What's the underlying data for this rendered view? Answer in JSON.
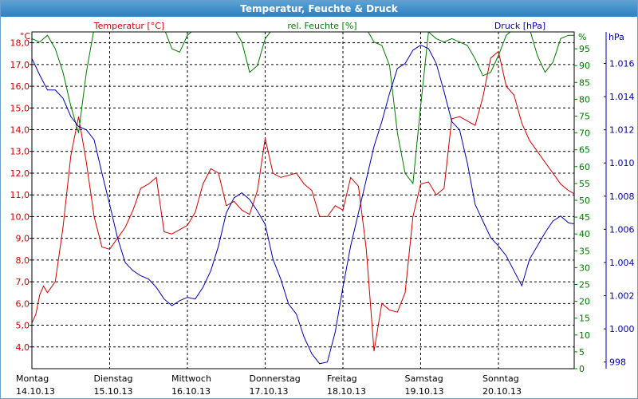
{
  "window": {
    "title": "Temperatur, Feuchte & Druck"
  },
  "colors": {
    "temperature": "#cc0000",
    "humidity": "#007700",
    "pressure": "#0000aa",
    "grid": "#000000"
  },
  "chart_data": {
    "type": "line",
    "title": "Temperatur, Feuchte & Druck",
    "grid": true,
    "legend": "top",
    "x_labels": [
      {
        "day": "Montag",
        "date": "14.10.13"
      },
      {
        "day": "Dienstag",
        "date": "15.10.13"
      },
      {
        "day": "Mittwoch",
        "date": "16.10.13"
      },
      {
        "day": "Donnerstag",
        "date": "17.10.13"
      },
      {
        "day": "Freitag",
        "date": "18.10.13"
      },
      {
        "day": "Samstag",
        "date": "19.10.13"
      },
      {
        "day": "Sonntag",
        "date": "20.10.13"
      }
    ],
    "x_range_days": [
      0,
      7.1
    ],
    "axes": {
      "temperature": {
        "unit": "°C",
        "min": 3.0,
        "max": 18.5,
        "ticks": [
          "4,0",
          "5,0",
          "6,0",
          "7,0",
          "8,0",
          "9,0",
          "10,0",
          "11,0",
          "12,0",
          "13,0",
          "14,0",
          "15,0",
          "16,0",
          "17,0",
          "18,0"
        ]
      },
      "humidity": {
        "unit": "%",
        "min": 0,
        "max": 100,
        "ticks": [
          "0",
          "5",
          "10",
          "15",
          "20",
          "25",
          "30",
          "35",
          "40",
          "45",
          "50",
          "55",
          "60",
          "65",
          "70",
          "75",
          "80",
          "85",
          "90",
          "95"
        ]
      },
      "pressure": {
        "unit": "hPa",
        "min": 997.6,
        "max": 1017.9,
        "ticks": [
          "998",
          "1.000",
          "1.002",
          "1.004",
          "1.006",
          "1.008",
          "1.010",
          "1.012",
          "1.014",
          "1.016"
        ]
      }
    },
    "series": [
      {
        "name": "Temperatur [°C]",
        "axis": "temperature",
        "x": [
          0,
          0.05,
          0.1,
          0.15,
          0.2,
          0.3,
          0.4,
          0.5,
          0.6,
          0.7,
          0.8,
          0.9,
          1.0,
          1.1,
          1.2,
          1.3,
          1.4,
          1.5,
          1.6,
          1.7,
          1.8,
          1.9,
          2.0,
          2.1,
          2.2,
          2.3,
          2.4,
          2.5,
          2.6,
          2.7,
          2.8,
          2.9,
          3.0,
          3.1,
          3.2,
          3.3,
          3.4,
          3.5,
          3.6,
          3.7,
          3.8,
          3.9,
          4.0,
          4.1,
          4.2,
          4.3,
          4.4,
          4.5,
          4.6,
          4.7,
          4.8,
          4.9,
          5.0,
          5.1,
          5.2,
          5.3,
          5.4,
          5.5,
          5.6,
          5.7,
          5.8,
          5.9,
          6.0,
          6.1,
          6.2,
          6.3,
          6.4,
          6.5,
          6.6,
          6.7,
          6.8,
          6.9,
          7.0,
          7.1
        ],
        "values": [
          5.1,
          5.5,
          6.4,
          6.8,
          6.5,
          7.0,
          9.5,
          12.8,
          14.6,
          12.5,
          10.0,
          8.6,
          8.5,
          9.0,
          9.5,
          10.3,
          11.3,
          11.5,
          11.8,
          9.3,
          9.2,
          9.4,
          9.6,
          10.2,
          11.5,
          12.2,
          12.0,
          10.5,
          10.7,
          10.3,
          10.1,
          11.2,
          13.6,
          12.0,
          11.8,
          11.9,
          12.0,
          11.5,
          11.2,
          10.0,
          10.0,
          10.5,
          10.3,
          11.8,
          11.4,
          8.5,
          3.8,
          6.0,
          5.7,
          5.6,
          6.5,
          10.0,
          11.5,
          11.6,
          11.0,
          11.3,
          14.5,
          14.6,
          14.4,
          14.2,
          15.5,
          17.3,
          17.6,
          16.0,
          15.6,
          14.3,
          13.5,
          13.0,
          12.5,
          12.0,
          11.5,
          11.2,
          11.0,
          10.8
        ]
      },
      {
        "name": "rel. Feuchte [%]",
        "axis": "humidity",
        "x": [
          0,
          0.1,
          0.2,
          0.3,
          0.4,
          0.5,
          0.6,
          0.7,
          0.8,
          0.9,
          1.0,
          1.1,
          1.2,
          1.3,
          1.4,
          1.5,
          1.6,
          1.7,
          1.8,
          1.9,
          2.0,
          2.1,
          2.2,
          2.3,
          2.4,
          2.5,
          2.6,
          2.7,
          2.8,
          2.9,
          3.0,
          3.1,
          3.2,
          3.3,
          3.4,
          3.5,
          3.6,
          3.7,
          3.8,
          3.9,
          4.0,
          4.1,
          4.2,
          4.3,
          4.4,
          4.5,
          4.6,
          4.7,
          4.8,
          4.9,
          5.0,
          5.1,
          5.2,
          5.3,
          5.4,
          5.5,
          5.6,
          5.7,
          5.8,
          5.9,
          6.0,
          6.1,
          6.2,
          6.3,
          6.4,
          6.5,
          6.6,
          6.7,
          6.8,
          6.9,
          7.0,
          7.1
        ],
        "values": [
          98,
          97,
          99,
          95,
          88,
          78,
          70,
          88,
          101,
          101,
          101,
          101,
          101,
          101,
          101,
          101,
          101,
          101,
          95,
          94,
          99,
          101,
          101,
          101,
          101,
          101,
          101,
          97,
          88,
          90,
          98,
          101,
          101,
          101,
          101,
          101,
          101,
          101,
          101,
          101,
          101,
          101,
          101,
          101,
          97,
          96,
          90,
          70,
          58,
          55,
          78,
          100,
          98,
          97,
          98,
          97,
          96,
          92,
          87,
          88,
          93,
          99,
          101,
          100,
          101,
          93,
          88,
          91,
          98,
          99,
          99,
          99
        ]
      },
      {
        "name": "Druck [hPa]",
        "axis": "pressure",
        "x": [
          0,
          0.1,
          0.2,
          0.3,
          0.4,
          0.5,
          0.6,
          0.7,
          0.8,
          0.9,
          1.0,
          1.1,
          1.2,
          1.3,
          1.4,
          1.5,
          1.6,
          1.7,
          1.8,
          1.9,
          2.0,
          2.1,
          2.2,
          2.3,
          2.4,
          2.5,
          2.6,
          2.7,
          2.8,
          2.9,
          3.0,
          3.1,
          3.2,
          3.3,
          3.4,
          3.5,
          3.6,
          3.7,
          3.8,
          3.9,
          4.0,
          4.1,
          4.2,
          4.3,
          4.4,
          4.5,
          4.6,
          4.7,
          4.8,
          4.9,
          5.0,
          5.1,
          5.2,
          5.3,
          5.4,
          5.5,
          5.6,
          5.7,
          5.8,
          5.9,
          6.0,
          6.1,
          6.2,
          6.3,
          6.4,
          6.5,
          6.6,
          6.7,
          6.8,
          6.9,
          7.0,
          7.1
        ],
        "values": [
          1016.3,
          1015.3,
          1014.4,
          1014.4,
          1013.9,
          1012.8,
          1012.2,
          1012.0,
          1011.4,
          1009.4,
          1007.5,
          1005.5,
          1004.0,
          1003.5,
          1003.2,
          1003.0,
          1002.5,
          1001.8,
          1001.4,
          1001.7,
          1001.9,
          1001.8,
          1002.5,
          1003.5,
          1005.0,
          1007.0,
          1007.9,
          1008.2,
          1007.8,
          1007.1,
          1006.3,
          1004.2,
          1003.0,
          1001.5,
          1000.9,
          999.5,
          998.5,
          997.9,
          998.0,
          999.8,
          1002.5,
          1005.0,
          1007.0,
          1009.0,
          1011.0,
          1012.5,
          1014.2,
          1015.7,
          1016.0,
          1016.8,
          1017.1,
          1016.9,
          1016.0,
          1014.3,
          1012.5,
          1012.0,
          1010.0,
          1007.5,
          1006.5,
          1005.5,
          1005.0,
          1004.4,
          1003.5,
          1002.6,
          1004.2,
          1005.0,
          1005.8,
          1006.5,
          1006.8,
          1006.4,
          1006.3,
          1006.0
        ]
      }
    ]
  }
}
